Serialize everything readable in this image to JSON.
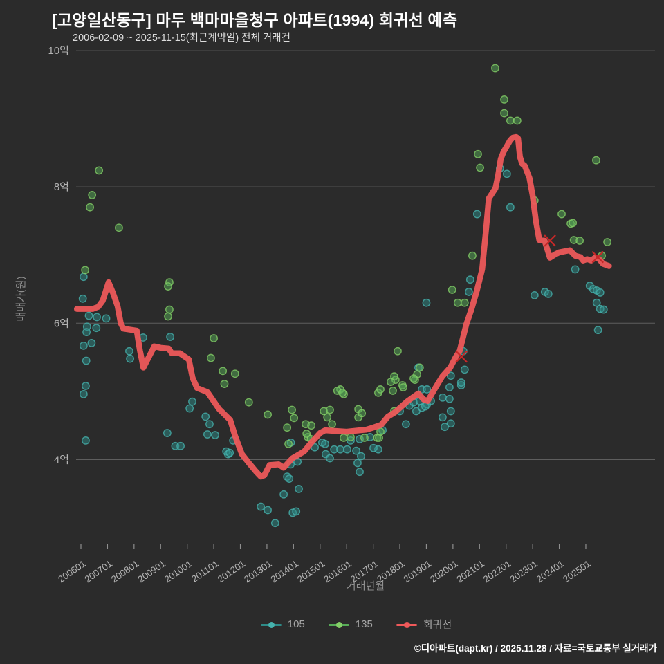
{
  "header": {
    "title": "[고양일산동구] 마두 백마마을청구 아파트(1994) 회귀선 예측",
    "subtitle": "2006-02-09 ~ 2025-11-15(최근계약일) 전체 거래건"
  },
  "footer": {
    "credit": "©디아파트(dapt.kr) / 2025.11.28 / 자료=국토교통부 실거래가"
  },
  "legend": {
    "items": [
      {
        "label": "105"
      },
      {
        "label": "135"
      },
      {
        "label": "회귀선"
      }
    ]
  },
  "colors": {
    "background": "#2b2b2b",
    "grid": "#5e5e5e",
    "tick_mark": "#8f8f8f",
    "tick_label": "#b3b3b3",
    "series_105": "#2e8b88",
    "series_105_edge": "#46b2ad",
    "series_135": "#57ac57",
    "series_135_edge": "#83ce67",
    "regression": "#f0595a",
    "outlier_x": "#c62828"
  },
  "chart_data": {
    "type": "scatter",
    "title": "[고양일산동구] 마두 백마마을청구 아파트(1994) 회귀선 예측",
    "subtitle": "2006-02-09 ~ 2025-11-15(최근계약일) 전체 거래건",
    "xlabel": "거래년월",
    "ylabel": "매매가(원)",
    "grid": "horizontal-only",
    "legend_position": "bottom-center",
    "unit": "억원",
    "ylim": [
      2.7,
      10.0
    ],
    "xlim": [
      2005.8,
      2027.6
    ],
    "x_ticks": [
      "200601",
      "200701",
      "200801",
      "200901",
      "201001",
      "201101",
      "201201",
      "201301",
      "201401",
      "201501",
      "201601",
      "201701",
      "201801",
      "201901",
      "202001",
      "202101",
      "202201",
      "202301",
      "202401",
      "202501"
    ],
    "y_ticks": [
      {
        "value": 4,
        "label": "4억"
      },
      {
        "value": 6,
        "label": "6억"
      },
      {
        "value": 8,
        "label": "8억"
      },
      {
        "value": 10,
        "label": "10억"
      }
    ],
    "series": [
      {
        "name": "105",
        "points": [
          [
            2006.07,
            6.36
          ],
          [
            2006.1,
            6.68
          ],
          [
            2006.3,
            6.11
          ],
          [
            2006.6,
            6.09
          ],
          [
            2006.95,
            6.07
          ],
          [
            2006.23,
            5.95
          ],
          [
            2006.58,
            5.93
          ],
          [
            2006.21,
            5.87
          ],
          [
            2006.4,
            5.71
          ],
          [
            2006.1,
            5.67
          ],
          [
            2006.2,
            5.45
          ],
          [
            2006.18,
            5.08
          ],
          [
            2006.1,
            4.96
          ],
          [
            2006.18,
            4.28
          ],
          [
            2007.82,
            5.59
          ],
          [
            2007.85,
            5.48
          ],
          [
            2008.34,
            5.79
          ],
          [
            2009.36,
            5.8
          ],
          [
            2009.25,
            4.39
          ],
          [
            2009.55,
            4.2
          ],
          [
            2009.75,
            4.2
          ],
          [
            2010.19,
            4.85
          ],
          [
            2010.09,
            4.75
          ],
          [
            2010.69,
            4.63
          ],
          [
            2010.76,
            4.37
          ],
          [
            2010.84,
            4.52
          ],
          [
            2011.05,
            4.36
          ],
          [
            2011.47,
            4.12
          ],
          [
            2011.54,
            4.08
          ],
          [
            2011.6,
            4.1
          ],
          [
            2011.73,
            4.28
          ],
          [
            2012.77,
            3.31
          ],
          [
            2013.03,
            3.26
          ],
          [
            2013.31,
            3.07
          ],
          [
            2013.63,
            3.49
          ],
          [
            2013.76,
            3.75
          ],
          [
            2013.84,
            3.72
          ],
          [
            2013.97,
            3.22
          ],
          [
            2014.2,
            3.57
          ],
          [
            2013.89,
            3.93
          ],
          [
            2014.15,
            3.97
          ],
          [
            2014.1,
            3.24
          ],
          [
            2013.9,
            4.25
          ],
          [
            2014.8,
            4.18
          ],
          [
            2015.08,
            4.25
          ],
          [
            2015.19,
            4.23
          ],
          [
            2015.21,
            4.08
          ],
          [
            2015.37,
            4.02
          ],
          [
            2015.53,
            4.15
          ],
          [
            2015.76,
            4.15
          ],
          [
            2016.02,
            4.15
          ],
          [
            2016.36,
            4.13
          ],
          [
            2016.49,
            4.3
          ],
          [
            2016.88,
            4.33
          ],
          [
            2017.19,
            4.15
          ],
          [
            2016.54,
            4.05
          ],
          [
            2016.41,
            3.95
          ],
          [
            2016.49,
            3.82
          ],
          [
            2016.15,
            4.28
          ],
          [
            2017.01,
            4.17
          ],
          [
            2017.35,
            4.43
          ],
          [
            2018.0,
            4.71
          ],
          [
            2018.23,
            4.52
          ],
          [
            2018.36,
            4.79
          ],
          [
            2018.52,
            4.84
          ],
          [
            2018.62,
            4.71
          ],
          [
            2018.75,
            4.86
          ],
          [
            2018.83,
            4.76
          ],
          [
            2019.02,
            4.81
          ],
          [
            2019.17,
            4.86
          ],
          [
            2018.7,
            5.35
          ],
          [
            2018.83,
            5.03
          ],
          [
            2019.02,
            5.03
          ],
          [
            2018.96,
            4.78
          ],
          [
            2019.61,
            4.91
          ],
          [
            2019.87,
            4.89
          ],
          [
            2019.87,
            5.06
          ],
          [
            2019.61,
            4.62
          ],
          [
            2019.69,
            4.48
          ],
          [
            2019.92,
            4.71
          ],
          [
            2019.92,
            4.53
          ],
          [
            2019.92,
            5.23
          ],
          [
            2020.31,
            5.09
          ],
          [
            2020.44,
            5.32
          ],
          [
            2020.39,
            5.59
          ],
          [
            2020.31,
            5.13
          ],
          [
            2019.0,
            6.3
          ],
          [
            2020.6,
            6.46
          ],
          [
            2020.65,
            6.64
          ],
          [
            2020.91,
            7.6
          ],
          [
            2021.77,
            8.27
          ],
          [
            2022.03,
            8.19
          ],
          [
            2022.16,
            7.7
          ],
          [
            2023.07,
            6.41
          ],
          [
            2023.46,
            6.46
          ],
          [
            2023.59,
            6.43
          ],
          [
            2024.6,
            6.79
          ],
          [
            2025.15,
            6.55
          ],
          [
            2025.28,
            6.5
          ],
          [
            2025.41,
            6.48
          ],
          [
            2025.54,
            6.45
          ],
          [
            2025.41,
            6.3
          ],
          [
            2025.54,
            6.21
          ],
          [
            2025.67,
            6.2
          ],
          [
            2025.46,
            5.9
          ]
        ]
      },
      {
        "name": "135",
        "points": [
          [
            2006.68,
            8.24
          ],
          [
            2006.42,
            7.88
          ],
          [
            2006.34,
            7.7
          ],
          [
            2007.43,
            7.4
          ],
          [
            2006.16,
            6.78
          ],
          [
            2009.33,
            6.6
          ],
          [
            2009.28,
            6.54
          ],
          [
            2009.33,
            6.2
          ],
          [
            2009.28,
            6.1
          ],
          [
            2011.0,
            5.78
          ],
          [
            2010.89,
            5.49
          ],
          [
            2011.34,
            5.3
          ],
          [
            2011.4,
            5.11
          ],
          [
            2011.8,
            5.26
          ],
          [
            2012.32,
            4.84
          ],
          [
            2013.03,
            4.66
          ],
          [
            2013.94,
            4.73
          ],
          [
            2014.02,
            4.61
          ],
          [
            2013.76,
            4.47
          ],
          [
            2013.81,
            4.23
          ],
          [
            2014.46,
            4.52
          ],
          [
            2014.54,
            4.33
          ],
          [
            2014.67,
            4.5
          ],
          [
            2014.49,
            4.38
          ],
          [
            2014.65,
            4.3
          ],
          [
            2015.14,
            4.71
          ],
          [
            2015.37,
            4.73
          ],
          [
            2015.27,
            4.62
          ],
          [
            2015.45,
            4.52
          ],
          [
            2015.89,
            4.96
          ],
          [
            2015.76,
            5.03
          ],
          [
            2015.65,
            5.01
          ],
          [
            2015.84,
            4.98
          ],
          [
            2015.89,
            4.32
          ],
          [
            2016.44,
            4.74
          ],
          [
            2016.44,
            4.62
          ],
          [
            2016.57,
            4.68
          ],
          [
            2016.15,
            4.33
          ],
          [
            2016.67,
            4.32
          ],
          [
            2017.15,
            4.32
          ],
          [
            2017.22,
            4.32
          ],
          [
            2017.27,
            4.41
          ],
          [
            2017.19,
            4.98
          ],
          [
            2017.27,
            5.03
          ],
          [
            2017.74,
            5.01
          ],
          [
            2017.79,
            4.71
          ],
          [
            2017.92,
            5.59
          ],
          [
            2018.75,
            5.35
          ],
          [
            2018.65,
            5.25
          ],
          [
            2018.57,
            5.17
          ],
          [
            2018.52,
            5.19
          ],
          [
            2017.84,
            5.17
          ],
          [
            2017.79,
            5.22
          ],
          [
            2017.66,
            5.14
          ],
          [
            2018.1,
            5.09
          ],
          [
            2018.13,
            5.06
          ],
          [
            2019.97,
            6.49
          ],
          [
            2020.18,
            6.3
          ],
          [
            2020.44,
            6.3
          ],
          [
            2020.73,
            6.99
          ],
          [
            2020.94,
            8.48
          ],
          [
            2021.02,
            8.28
          ],
          [
            2021.59,
            9.74
          ],
          [
            2021.93,
            9.28
          ],
          [
            2021.93,
            9.08
          ],
          [
            2022.16,
            8.97
          ],
          [
            2022.42,
            8.97
          ],
          [
            2023.07,
            7.8
          ],
          [
            2024.09,
            7.6
          ],
          [
            2024.43,
            7.46
          ],
          [
            2024.51,
            7.47
          ],
          [
            2024.55,
            7.22
          ],
          [
            2024.77,
            7.21
          ],
          [
            2025.6,
            6.99
          ],
          [
            2025.39,
            8.39
          ],
          [
            2025.81,
            7.19
          ]
        ]
      }
    ],
    "regression": {
      "name": "회귀선",
      "points": [
        [
          2005.85,
          6.21
        ],
        [
          2006.45,
          6.21
        ],
        [
          2006.65,
          6.24
        ],
        [
          2006.82,
          6.33
        ],
        [
          2007.04,
          6.6
        ],
        [
          2007.2,
          6.45
        ],
        [
          2007.38,
          6.25
        ],
        [
          2007.5,
          6.0
        ],
        [
          2007.6,
          5.92
        ],
        [
          2008.1,
          5.89
        ],
        [
          2008.22,
          5.6
        ],
        [
          2008.35,
          5.35
        ],
        [
          2008.55,
          5.5
        ],
        [
          2008.76,
          5.66
        ],
        [
          2009.0,
          5.64
        ],
        [
          2009.3,
          5.63
        ],
        [
          2009.42,
          5.56
        ],
        [
          2009.72,
          5.56
        ],
        [
          2010.06,
          5.47
        ],
        [
          2010.2,
          5.2
        ],
        [
          2010.37,
          5.05
        ],
        [
          2010.5,
          5.03
        ],
        [
          2010.76,
          4.99
        ],
        [
          2011.2,
          4.74
        ],
        [
          2011.62,
          4.58
        ],
        [
          2011.8,
          4.35
        ],
        [
          2012.06,
          4.08
        ],
        [
          2012.32,
          3.95
        ],
        [
          2012.58,
          3.83
        ],
        [
          2012.77,
          3.75
        ],
        [
          2012.9,
          3.77
        ],
        [
          2013.1,
          3.92
        ],
        [
          2013.44,
          3.93
        ],
        [
          2013.63,
          3.88
        ],
        [
          2013.96,
          4.02
        ],
        [
          2014.4,
          4.12
        ],
        [
          2014.67,
          4.25
        ],
        [
          2015.0,
          4.39
        ],
        [
          2015.19,
          4.43
        ],
        [
          2016.0,
          4.41
        ],
        [
          2016.75,
          4.44
        ],
        [
          2017.0,
          4.47
        ],
        [
          2017.3,
          4.51
        ],
        [
          2017.55,
          4.63
        ],
        [
          2017.8,
          4.69
        ],
        [
          2018.3,
          4.86
        ],
        [
          2018.7,
          4.97
        ],
        [
          2018.9,
          4.88
        ],
        [
          2019.05,
          4.86
        ],
        [
          2019.35,
          5.06
        ],
        [
          2019.6,
          5.22
        ],
        [
          2019.9,
          5.35
        ],
        [
          2020.1,
          5.5
        ],
        [
          2020.25,
          5.59
        ],
        [
          2020.5,
          5.98
        ],
        [
          2020.7,
          6.21
        ],
        [
          2020.9,
          6.48
        ],
        [
          2021.1,
          6.79
        ],
        [
          2021.25,
          7.39
        ],
        [
          2021.35,
          7.83
        ],
        [
          2021.5,
          7.92
        ],
        [
          2021.6,
          7.98
        ],
        [
          2021.7,
          8.17
        ],
        [
          2021.8,
          8.41
        ],
        [
          2021.9,
          8.51
        ],
        [
          2022.05,
          8.61
        ],
        [
          2022.15,
          8.68
        ],
        [
          2022.25,
          8.72
        ],
        [
          2022.38,
          8.73
        ],
        [
          2022.45,
          8.71
        ],
        [
          2022.52,
          8.44
        ],
        [
          2022.6,
          8.34
        ],
        [
          2022.7,
          8.31
        ],
        [
          2022.88,
          8.13
        ],
        [
          2023.0,
          7.87
        ],
        [
          2023.12,
          7.5
        ],
        [
          2023.25,
          7.22
        ],
        [
          2023.45,
          7.21
        ],
        [
          2023.65,
          6.96
        ],
        [
          2023.85,
          7.01
        ],
        [
          2024.0,
          7.04
        ],
        [
          2024.4,
          7.07
        ],
        [
          2024.6,
          6.99
        ],
        [
          2024.8,
          6.97
        ],
        [
          2024.9,
          6.92
        ],
        [
          2025.05,
          6.94
        ],
        [
          2025.2,
          6.92
        ],
        [
          2025.35,
          6.96
        ],
        [
          2025.5,
          6.94
        ],
        [
          2025.65,
          6.87
        ],
        [
          2025.87,
          6.84
        ]
      ]
    },
    "outlier_markers": [
      [
        2020.32,
        5.51
      ],
      [
        2023.65,
        7.21
      ],
      [
        2025.45,
        6.97
      ]
    ]
  }
}
